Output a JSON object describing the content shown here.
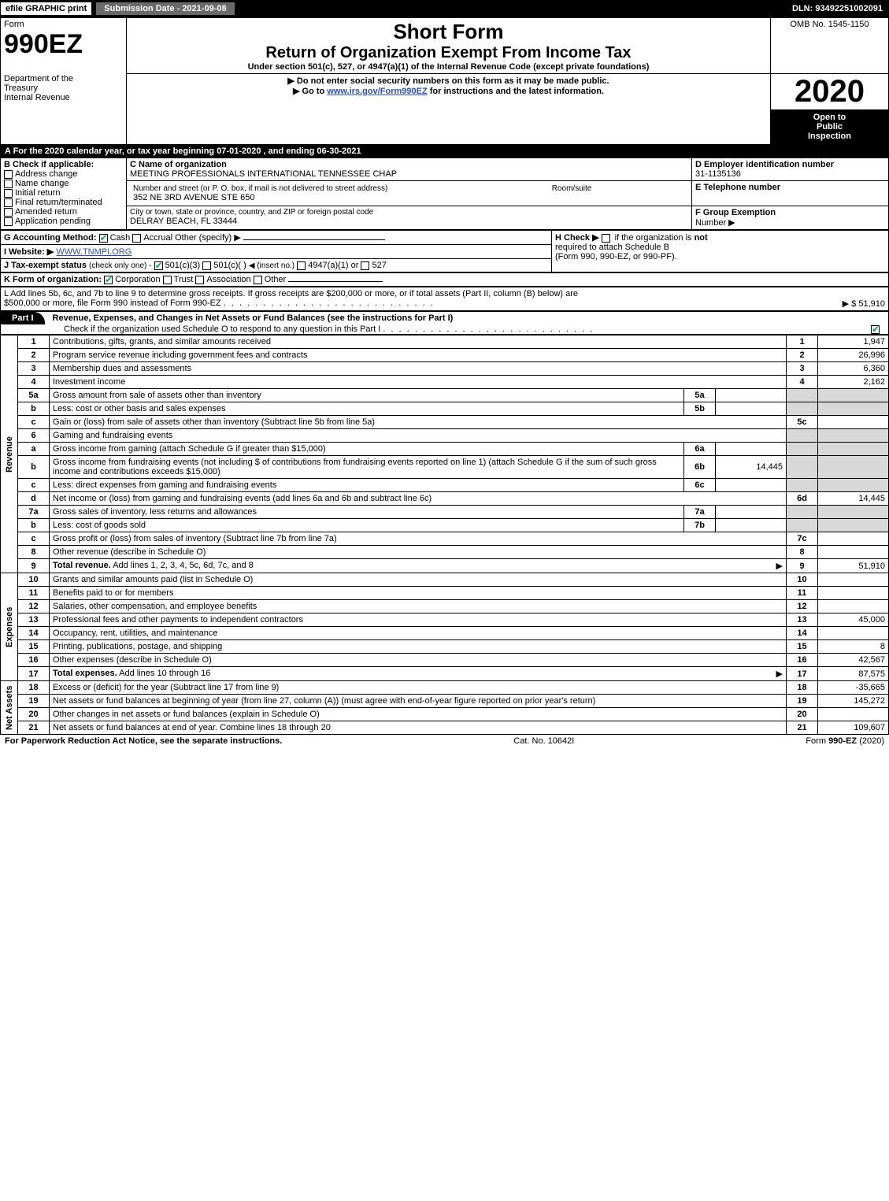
{
  "top": {
    "efile": "efile GRAPHIC print",
    "submission_label": "Submission Date - 2021-09-08",
    "dln": "DLN: 93492251002091"
  },
  "header": {
    "form_word": "Form",
    "form_no": "990EZ",
    "dept1": "Department of the",
    "dept2": "Treasury",
    "dept3": "Internal Revenue",
    "title_short": "Short Form",
    "title_long": "Return of Organization Exempt From Income Tax",
    "title_sub": "Under section 501(c), 527, or 4947(a)(1) of the Internal Revenue Code (except private foundations)",
    "instr1": "Do not enter social security numbers on this form as it may be made public.",
    "instr2_pre": "Go to ",
    "instr2_link": "www.irs.gov/Form990EZ",
    "instr2_post": " for instructions and the latest information.",
    "omb": "OMB No. 1545-1150",
    "year": "2020",
    "open1": "Open to",
    "open2": "Public",
    "open3": "Inspection"
  },
  "section_a": "A   For the 2020 calendar year, or tax year beginning 07-01-2020 , and ending 06-30-2021",
  "box_b": {
    "title": "B  Check if applicable:",
    "items": [
      "Address change",
      "Name change",
      "Initial return",
      "Final return/terminated",
      "Amended return",
      "Application pending"
    ]
  },
  "box_c": {
    "c_label": "C Name of organization",
    "c_value": "MEETING PROFESSIONALS INTERNATIONAL TENNESSEE CHAP",
    "addr_label": "Number and street (or P. O. box, if mail is not delivered to street address)",
    "addr_value": "352 NE 3RD AVENUE STE 650",
    "room_label": "Room/suite",
    "city_label": "City or town, state or province, country, and ZIP or foreign postal code",
    "city_value": "DELRAY BEACH, FL  33444"
  },
  "box_d": {
    "label": "D Employer identification number",
    "value": "31-1135136"
  },
  "box_e": {
    "label": "E Telephone number",
    "value": ""
  },
  "box_f": {
    "label": "F Group Exemption",
    "label2": "Number  ▶",
    "value": ""
  },
  "box_g": {
    "label": "G Accounting Method:",
    "opt_cash": "Cash",
    "opt_accrual": "Accrual",
    "opt_other": "Other (specify) ▶"
  },
  "box_h": {
    "label": "H  Check ▶",
    "text1": "if the organization is ",
    "not": "not",
    "text2": "required to attach Schedule B",
    "text3": "(Form 990, 990-EZ, or 990-PF)."
  },
  "box_i": {
    "label": "I Website: ▶",
    "value": "WWW.TNMPI.ORG"
  },
  "box_j": {
    "label": "J Tax-exempt status",
    "sub": "(check only one) -",
    "o1": "501(c)(3)",
    "o2": "501(c)(  )",
    "o2_sub": "◀ (insert no.)",
    "o3": "4947(a)(1) or",
    "o4": "527"
  },
  "box_k": {
    "label": "K Form of organization:",
    "o1": "Corporation",
    "o2": "Trust",
    "o3": "Association",
    "o4": "Other"
  },
  "box_l": {
    "text1": "L Add lines 5b, 6c, and 7b to line 9 to determine gross receipts. If gross receipts are $200,000 or more, or if total assets (Part II, column (B) below) are",
    "text2": "$500,000 or more, file Form 990 instead of Form 990-EZ",
    "value": "▶ $ 51,910"
  },
  "part1": {
    "tab": "Part I",
    "title": "Revenue, Expenses, and Changes in Net Assets or Fund Balances (see the instructions for Part I)",
    "check_line": "Check if the organization used Schedule O to respond to any question in this Part I"
  },
  "sides": {
    "rev": "Revenue",
    "exp": "Expenses",
    "na": "Net Assets"
  },
  "lines": [
    {
      "n": "1",
      "d": "Contributions, gifts, grants, and similar amounts received",
      "r": "1",
      "v": "1,947"
    },
    {
      "n": "2",
      "d": "Program service revenue including government fees and contracts",
      "r": "2",
      "v": "26,996"
    },
    {
      "n": "3",
      "d": "Membership dues and assessments",
      "r": "3",
      "v": "6,360"
    },
    {
      "n": "4",
      "d": "Investment income",
      "r": "4",
      "v": "2,162"
    },
    {
      "n": "5a",
      "d": "Gross amount from sale of assets other than inventory",
      "mid": "5a",
      "midv": ""
    },
    {
      "n": "b",
      "d": "Less: cost or other basis and sales expenses",
      "mid": "5b",
      "midv": ""
    },
    {
      "n": "c",
      "d": "Gain or (loss) from sale of assets other than inventory (Subtract line 5b from line 5a)",
      "r": "5c",
      "v": ""
    },
    {
      "n": "6",
      "d": "Gaming and fundraising events"
    },
    {
      "n": "a",
      "d": "Gross income from gaming (attach Schedule G if greater than $15,000)",
      "mid": "6a",
      "midv": ""
    },
    {
      "n": "b",
      "d": "Gross income from fundraising events (not including $                 of contributions from fundraising events reported on line 1) (attach Schedule G if the sum of such gross income and contributions exceeds $15,000)",
      "mid": "6b",
      "midv": "14,445"
    },
    {
      "n": "c",
      "d": "Less: direct expenses from gaming and fundraising events",
      "mid": "6c",
      "midv": ""
    },
    {
      "n": "d",
      "d": "Net income or (loss) from gaming and fundraising events (add lines 6a and 6b and subtract line 6c)",
      "r": "6d",
      "v": "14,445"
    },
    {
      "n": "7a",
      "d": "Gross sales of inventory, less returns and allowances",
      "mid": "7a",
      "midv": ""
    },
    {
      "n": "b",
      "d": "Less: cost of goods sold",
      "mid": "7b",
      "midv": ""
    },
    {
      "n": "c",
      "d": "Gross profit or (loss) from sales of inventory (Subtract line 7b from line 7a)",
      "r": "7c",
      "v": ""
    },
    {
      "n": "8",
      "d": "Other revenue (describe in Schedule O)",
      "r": "8",
      "v": ""
    },
    {
      "n": "9",
      "d": "Total revenue. Add lines 1, 2, 3, 4, 5c, 6d, 7c, and 8",
      "r": "9",
      "v": "51,910",
      "bold": true,
      "arrow": true
    }
  ],
  "exp_lines": [
    {
      "n": "10",
      "d": "Grants and similar amounts paid (list in Schedule O)",
      "r": "10",
      "v": ""
    },
    {
      "n": "11",
      "d": "Benefits paid to or for members",
      "r": "11",
      "v": ""
    },
    {
      "n": "12",
      "d": "Salaries, other compensation, and employee benefits",
      "r": "12",
      "v": ""
    },
    {
      "n": "13",
      "d": "Professional fees and other payments to independent contractors",
      "r": "13",
      "v": "45,000"
    },
    {
      "n": "14",
      "d": "Occupancy, rent, utilities, and maintenance",
      "r": "14",
      "v": ""
    },
    {
      "n": "15",
      "d": "Printing, publications, postage, and shipping",
      "r": "15",
      "v": "8"
    },
    {
      "n": "16",
      "d": "Other expenses (describe in Schedule O)",
      "r": "16",
      "v": "42,567"
    },
    {
      "n": "17",
      "d": "Total expenses. Add lines 10 through 16",
      "r": "17",
      "v": "87,575",
      "bold": true,
      "arrow": true
    }
  ],
  "na_lines": [
    {
      "n": "18",
      "d": "Excess or (deficit) for the year (Subtract line 17 from line 9)",
      "r": "18",
      "v": "-35,665"
    },
    {
      "n": "19",
      "d": "Net assets or fund balances at beginning of year (from line 27, column (A)) (must agree with end-of-year figure reported on prior year's return)",
      "r": "19",
      "v": "145,272"
    },
    {
      "n": "20",
      "d": "Other changes in net assets or fund balances (explain in Schedule O)",
      "r": "20",
      "v": ""
    },
    {
      "n": "21",
      "d": "Net assets or fund balances at end of year. Combine lines 18 through 20",
      "r": "21",
      "v": "109,607"
    }
  ],
  "footer": {
    "left": "For Paperwork Reduction Act Notice, see the separate instructions.",
    "mid": "Cat. No. 10642I",
    "right_pre": "Form ",
    "right_bold": "990-EZ",
    "right_post": " (2020)"
  },
  "colors": {
    "black": "#000000",
    "white": "#ffffff",
    "shade": "#d8d8d8",
    "link": "#2a4ec3",
    "check": "#00aa55",
    "grey_btn": "#6a6a6a"
  }
}
